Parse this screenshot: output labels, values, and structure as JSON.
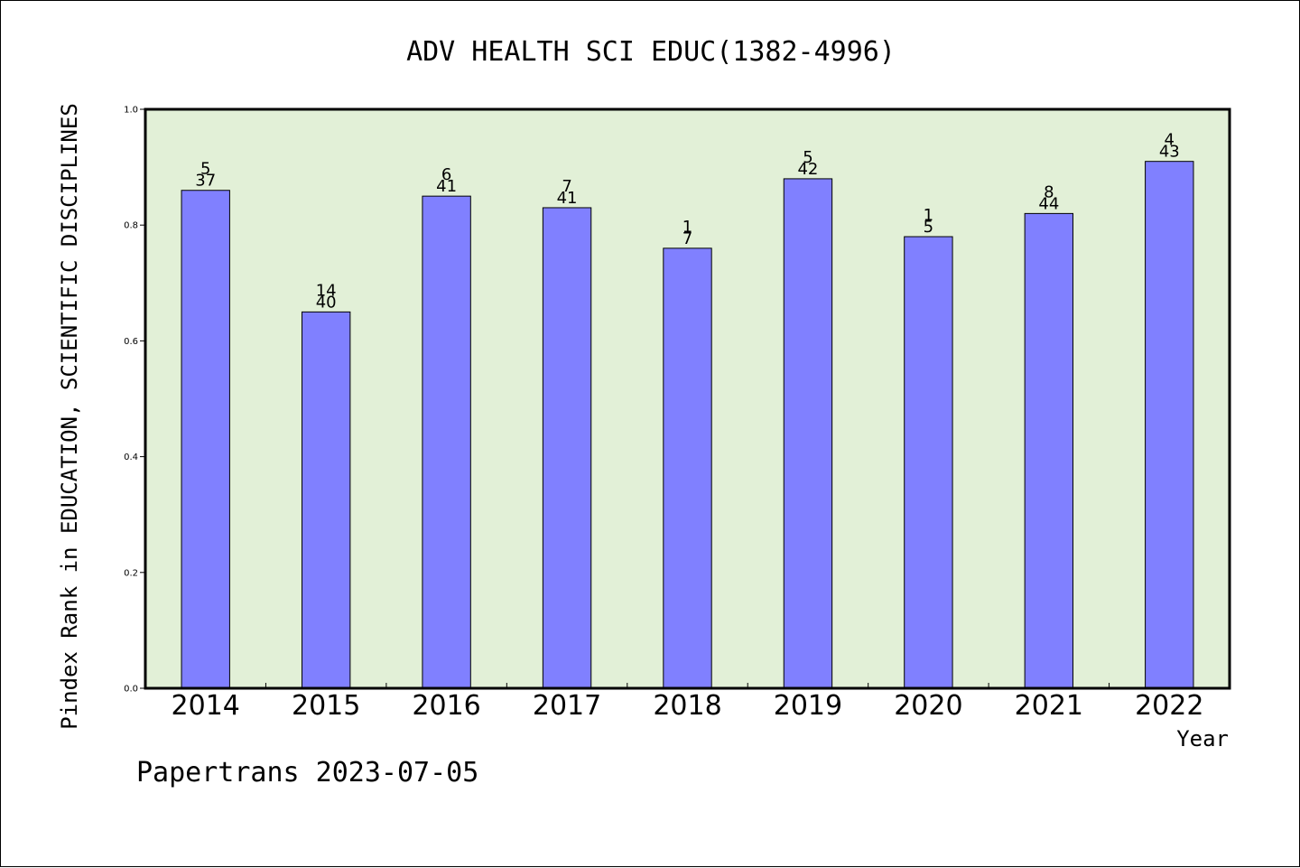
{
  "chart_data": {
    "type": "bar",
    "title": "ADV HEALTH SCI EDUC(1382-4996)",
    "ylabel": "Pindex Rank in EDUCATION, SCIENTIFIC DISCIPLINES",
    "xlabel": "Year",
    "categories": [
      "2014",
      "2015",
      "2016",
      "2017",
      "2018",
      "2019",
      "2020",
      "2021",
      "2022"
    ],
    "values": [
      0.86,
      0.65,
      0.85,
      0.83,
      0.76,
      0.88,
      0.78,
      0.82,
      0.91
    ],
    "rank_labels": [
      "5",
      "14",
      "6",
      "7",
      "1",
      "5",
      "1",
      "8",
      "4"
    ],
    "total_labels": [
      "37",
      "40",
      "41",
      "41",
      "7",
      "42",
      "5",
      "44",
      "43"
    ],
    "ylim": [
      0,
      1.0
    ],
    "yticks": [
      "0.0",
      "0.2",
      "0.4",
      "0.6",
      "0.8",
      "1.0"
    ],
    "grid": false,
    "colors": {
      "bar": "#8080ff",
      "plot_background": "#e2f0d7"
    }
  },
  "footer": "Papertrans 2023-07-05"
}
